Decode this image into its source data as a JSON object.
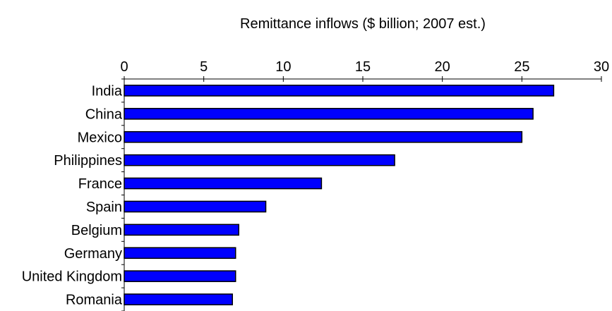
{
  "chart_data": {
    "type": "bar",
    "orientation": "horizontal",
    "title": "",
    "xlabel": "Remittance inflows ($ billion; 2007 est.)",
    "ylabel": "",
    "x_axis_position": "top",
    "xlim": [
      0,
      30
    ],
    "xticks": [
      0,
      5,
      10,
      15,
      20,
      25,
      30
    ],
    "grid": false,
    "legend": "none",
    "categories": [
      "India",
      "China",
      "Mexico",
      "Philippines",
      "France",
      "Spain",
      "Belgium",
      "Germany",
      "United Kingdom",
      "Romania"
    ],
    "values": [
      27.0,
      25.7,
      25.0,
      17.0,
      12.4,
      8.9,
      7.2,
      7.0,
      7.0,
      6.8
    ],
    "bar_color": "#0000ff",
    "bar_edge_color": "#000000"
  }
}
